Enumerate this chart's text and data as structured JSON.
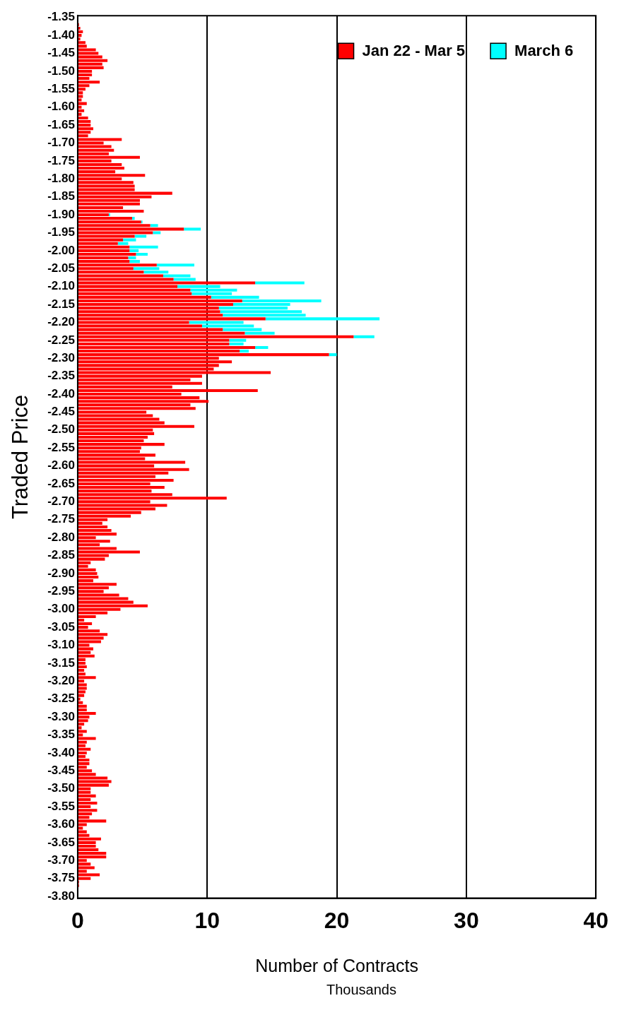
{
  "chart_data": {
    "type": "bar",
    "orientation": "horizontal",
    "stacked": true,
    "ylabel": "Traded Price",
    "xlabel": "Number of Contracts",
    "annotations": [
      "Thousands"
    ],
    "categories": [
      "-1.35",
      null,
      null,
      null,
      null,
      "-1.40",
      null,
      null,
      null,
      null,
      "-1.45",
      null,
      null,
      null,
      null,
      "-1.50",
      null,
      null,
      null,
      null,
      "-1.55",
      null,
      null,
      null,
      null,
      "-1.60",
      null,
      null,
      null,
      null,
      "-1.65",
      null,
      null,
      null,
      null,
      "-1.70",
      null,
      null,
      null,
      null,
      "-1.75",
      null,
      null,
      null,
      null,
      "-1.80",
      null,
      null,
      null,
      null,
      "-1.85",
      null,
      null,
      null,
      null,
      "-1.90",
      null,
      null,
      null,
      null,
      "-1.95",
      null,
      null,
      null,
      null,
      "-2.00",
      null,
      null,
      null,
      null,
      "-2.05",
      null,
      null,
      null,
      null,
      "-2.10",
      null,
      null,
      null,
      null,
      "-2.15",
      null,
      null,
      null,
      null,
      "-2.20",
      null,
      null,
      null,
      null,
      "-2.25",
      null,
      null,
      null,
      null,
      "-2.30",
      null,
      null,
      null,
      null,
      "-2.35",
      null,
      null,
      null,
      null,
      "-2.40",
      null,
      null,
      null,
      null,
      "-2.45",
      null,
      null,
      null,
      null,
      "-2.50",
      null,
      null,
      null,
      null,
      "-2.55",
      null,
      null,
      null,
      null,
      "-2.60",
      null,
      null,
      null,
      null,
      "-2.65",
      null,
      null,
      null,
      null,
      "-2.70",
      null,
      null,
      null,
      null,
      "-2.75",
      null,
      null,
      null,
      null,
      "-2.80",
      null,
      null,
      null,
      null,
      "-2.85",
      null,
      null,
      null,
      null,
      "-2.90",
      null,
      null,
      null,
      null,
      "-2.95",
      null,
      null,
      null,
      null,
      "-3.00",
      null,
      null,
      null,
      null,
      "-3.05",
      null,
      null,
      null,
      null,
      "-3.10",
      null,
      null,
      null,
      null,
      "-3.15",
      null,
      null,
      null,
      null,
      "-3.20",
      null,
      null,
      null,
      null,
      "-3.25",
      null,
      null,
      null,
      null,
      "-3.30",
      null,
      null,
      null,
      null,
      "-3.35",
      null,
      null,
      null,
      null,
      "-3.40",
      null,
      null,
      null,
      null,
      "-3.45",
      null,
      null,
      null,
      null,
      "-3.50",
      null,
      null,
      null,
      null,
      "-3.55",
      null,
      null,
      null,
      null,
      "-3.60",
      null,
      null,
      null,
      null,
      "-3.65",
      null,
      null,
      null,
      null,
      "-3.70",
      null,
      null,
      null,
      null,
      "-3.75",
      null,
      null,
      null,
      null,
      "-3.80"
    ],
    "series": [
      {
        "name": "Jan 22 - Mar 5",
        "color": "#ff0000",
        "values": [
          0,
          0,
          0.1,
          0.2,
          0.4,
          0.3,
          0.2,
          0.6,
          0.7,
          1.4,
          1.6,
          1.9,
          2.3,
          1.9,
          2.0,
          1.1,
          1.1,
          0.9,
          1.7,
          0.9,
          0.6,
          0.4,
          0.4,
          0.3,
          0.7,
          0.3,
          0.5,
          0.3,
          0.8,
          1.0,
          1.0,
          1.2,
          1.0,
          0.8,
          3.4,
          2.0,
          2.6,
          2.8,
          2.4,
          4.8,
          2.6,
          3.4,
          3.6,
          2.9,
          5.2,
          3.4,
          4.3,
          4.4,
          4.4,
          7.3,
          5.7,
          4.8,
          4.8,
          3.5,
          5.1,
          2.4,
          4.2,
          4.9,
          5.6,
          8.2,
          5.8,
          4.4,
          3.5,
          3.1,
          4.0,
          4.0,
          4.5,
          3.9,
          4.0,
          6.1,
          4.3,
          5.1,
          6.6,
          7.4,
          13.7,
          7.7,
          8.7,
          8.8,
          10.3,
          12.7,
          12.0,
          10.9,
          11.0,
          11.2,
          14.5,
          8.6,
          9.6,
          11.2,
          12.9,
          21.3,
          11.7,
          11.7,
          13.7,
          12.5,
          19.4,
          10.9,
          11.9,
          10.9,
          10.5,
          14.9,
          9.6,
          8.7,
          9.6,
          7.3,
          13.9,
          8.0,
          9.4,
          10.1,
          8.7,
          9.1,
          5.3,
          5.8,
          6.3,
          6.7,
          9.0,
          5.8,
          5.9,
          5.4,
          5.1,
          6.7,
          4.9,
          4.8,
          6.0,
          5.2,
          8.3,
          5.9,
          8.6,
          7.0,
          6.0,
          7.4,
          5.6,
          6.7,
          5.7,
          7.3,
          11.5,
          5.6,
          6.9,
          6.0,
          4.9,
          4.1,
          2.3,
          1.9,
          2.3,
          2.6,
          3.0,
          1.4,
          2.5,
          1.7,
          3.0,
          4.8,
          2.4,
          2.1,
          1.0,
          0.8,
          1.4,
          1.5,
          1.6,
          1.2,
          3.0,
          2.4,
          2.0,
          3.2,
          3.9,
          4.3,
          5.4,
          3.3,
          2.3,
          1.4,
          0.5,
          1.1,
          0.8,
          1.7,
          2.3,
          2.0,
          1.8,
          0.9,
          1.2,
          1.0,
          1.3,
          0.6,
          0.6,
          0.7,
          0.5,
          0.6,
          1.4,
          0.5,
          0.7,
          0.7,
          0.6,
          0.5,
          0.2,
          0.4,
          0.7,
          0.7,
          1.4,
          0.9,
          0.8,
          0.5,
          0.3,
          0.7,
          0.4,
          1.4,
          0.7,
          0.6,
          1.0,
          0.7,
          0.6,
          0.9,
          0.9,
          0.7,
          1.1,
          1.4,
          2.3,
          2.6,
          2.4,
          1.0,
          1.0,
          1.4,
          1.0,
          1.5,
          1.0,
          1.5,
          1.1,
          0.9,
          2.2,
          0.7,
          0.4,
          0.7,
          0.9,
          1.8,
          1.4,
          1.4,
          1.6,
          2.2,
          2.2,
          0.7,
          1.0,
          1.3,
          0.7,
          1.7,
          1.0,
          0.1,
          0.1,
          0,
          0,
          0
        ]
      },
      {
        "name": "March 6",
        "color": "#00ffff",
        "values": [
          null,
          null,
          null,
          null,
          null,
          null,
          null,
          null,
          null,
          null,
          null,
          null,
          null,
          null,
          null,
          null,
          null,
          null,
          null,
          null,
          null,
          null,
          null,
          null,
          null,
          null,
          null,
          null,
          null,
          null,
          null,
          null,
          null,
          null,
          null,
          null,
          null,
          null,
          null,
          null,
          null,
          null,
          null,
          null,
          null,
          null,
          null,
          null,
          null,
          null,
          null,
          null,
          null,
          null,
          null,
          0.1,
          0.2,
          0.1,
          0.6,
          1.3,
          0.6,
          0.9,
          1.0,
          0.8,
          2.2,
          0.7,
          0.9,
          0.6,
          0.8,
          2.9,
          2.0,
          1.9,
          2.1,
          1.7,
          3.8,
          3.3,
          3.6,
          3.1,
          3.7,
          6.1,
          4.4,
          5.3,
          6.3,
          6.4,
          8.8,
          4.2,
          4.0,
          3.0,
          2.3,
          1.6,
          1.3,
          1.1,
          1.0,
          0.7,
          0.6,
          null,
          null,
          null,
          null,
          null,
          null,
          null,
          null,
          null,
          null,
          null,
          null,
          null,
          null,
          null,
          null,
          null,
          null,
          null,
          null,
          null,
          null,
          null,
          null,
          null,
          null,
          null,
          null,
          null,
          null,
          null,
          null,
          null,
          null,
          null,
          null,
          null,
          null,
          null,
          null,
          null,
          null,
          null,
          null,
          null,
          null,
          null,
          null,
          null,
          null,
          null,
          null,
          null,
          null,
          null,
          null,
          null,
          null,
          null,
          null,
          null,
          null,
          null,
          null,
          null,
          null,
          null,
          null,
          null,
          null,
          null,
          null,
          null,
          null,
          null,
          null,
          null,
          null,
          null,
          null,
          null,
          null,
          null,
          null,
          null,
          null,
          null,
          null,
          null,
          null,
          null,
          null,
          null,
          null,
          null,
          null,
          null,
          null,
          null,
          null,
          null,
          null,
          null,
          null,
          null,
          null,
          null,
          null,
          null,
          null,
          null,
          null,
          null,
          null,
          null,
          null,
          null,
          null,
          null,
          null,
          null,
          null,
          null,
          null,
          null,
          null,
          null,
          null,
          null,
          null,
          null,
          null,
          null,
          null,
          null,
          null,
          null,
          null,
          null,
          null,
          null,
          null,
          null,
          null,
          null,
          null,
          null,
          null,
          null,
          null,
          null
        ]
      }
    ],
    "xlim": [
      0,
      40
    ],
    "xticks": [
      0,
      10,
      20,
      30,
      40
    ],
    "grid": "x",
    "legend": "top right"
  }
}
